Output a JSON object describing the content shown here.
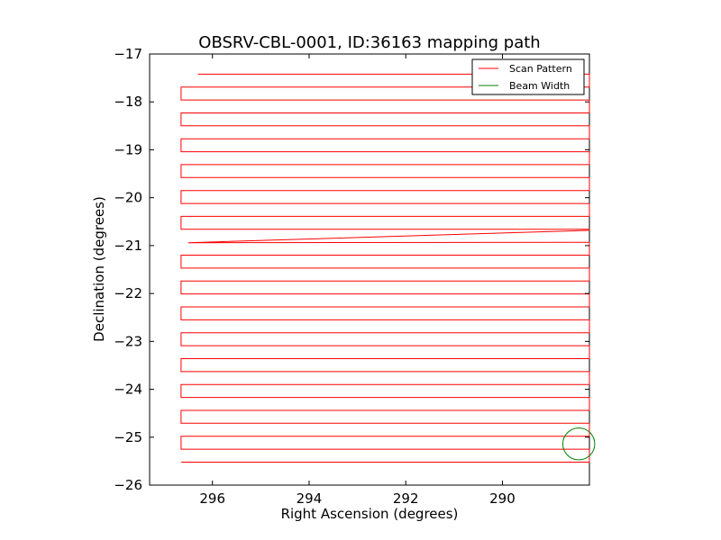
{
  "chart_data": {
    "type": "line",
    "title": "OBSRV-CBL-0001, ID:36163 mapping path",
    "xlabel": "Right Ascension (degrees)",
    "ylabel": "Declination (degrees)",
    "xlim": [
      297.3,
      288.2
    ],
    "ylim": [
      -26,
      -17
    ],
    "x_inverted": true,
    "xticks": [
      296,
      294,
      292,
      290
    ],
    "xtick_labels": [
      "296",
      "294",
      "292",
      "290"
    ],
    "yticks": [
      -17,
      -18,
      -19,
      -20,
      -21,
      -22,
      -23,
      -24,
      -25,
      -26
    ],
    "ytick_labels": [
      "−17",
      "−18",
      "−19",
      "−20",
      "−21",
      "−22",
      "−23",
      "−24",
      "−25",
      "−26"
    ],
    "scan": {
      "ra_start": 296.3,
      "ra_east_edge": 296.65,
      "ra_west_edge": 288.2,
      "dec_start": -17.42,
      "dec_end": -25.55,
      "dec_step": 0.27,
      "long_slew": {
        "from": [
          288.2,
          -20.68
        ],
        "to": [
          296.5,
          -20.94
        ]
      }
    },
    "beam": {
      "ra": 288.42,
      "dec": -25.14,
      "radius_deg": 0.33
    },
    "series": [
      {
        "name": "Scan Pattern",
        "color": "#ff0000"
      },
      {
        "name": "Beam Width",
        "color": "#008000"
      }
    ],
    "legend_location": "upper right",
    "grid": false
  }
}
